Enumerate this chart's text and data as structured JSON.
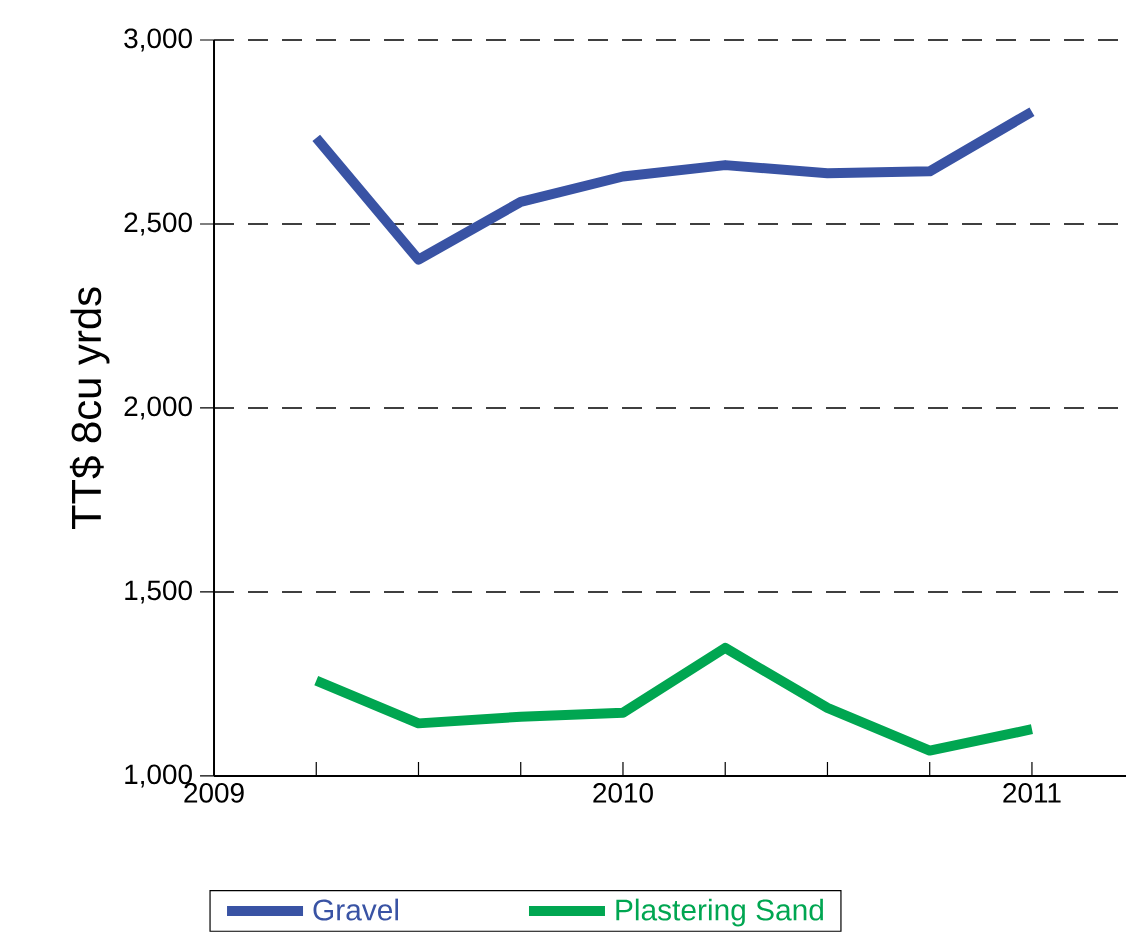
{
  "chart_data": {
    "type": "line",
    "ylabel": "TT$ 8cu yrds",
    "x": [
      2009.25,
      2009.5,
      2009.75,
      2010,
      2010.25,
      2010.5,
      2010.75,
      2011
    ],
    "series": [
      {
        "name": "Gravel",
        "color": "#3953a4",
        "values": [
          2734,
          2403,
          2560,
          2629,
          2660,
          2638,
          2643,
          2805
        ]
      },
      {
        "name": "Plastering Sand",
        "color": "#00a651",
        "values": [
          1259,
          1143,
          1161,
          1172,
          1348,
          1185,
          1069,
          1127
        ]
      }
    ],
    "xlim": [
      2009,
      2011.23
    ],
    "xticks": [
      2009,
      {
        "value": 2009.25,
        "label": null
      },
      {
        "value": 2009.5,
        "label": null
      },
      {
        "value": 2009.75,
        "label": null
      },
      2010,
      {
        "value": 2010.25,
        "label": null
      },
      {
        "value": 2010.5,
        "label": null
      },
      {
        "value": 2010.75,
        "label": null
      },
      2011
    ],
    "ylim": [
      1000,
      3000
    ],
    "yticks": [
      {
        "value": 1000,
        "label": "1,000"
      },
      {
        "value": 1500,
        "label": "1,500"
      },
      {
        "value": 2000,
        "label": "2,000"
      },
      {
        "value": 2500,
        "label": "2,500"
      },
      {
        "value": 3000,
        "label": "3,000"
      }
    ],
    "grid": "y",
    "legend": "bottom",
    "marker": "none",
    "line_style": "solid"
  }
}
